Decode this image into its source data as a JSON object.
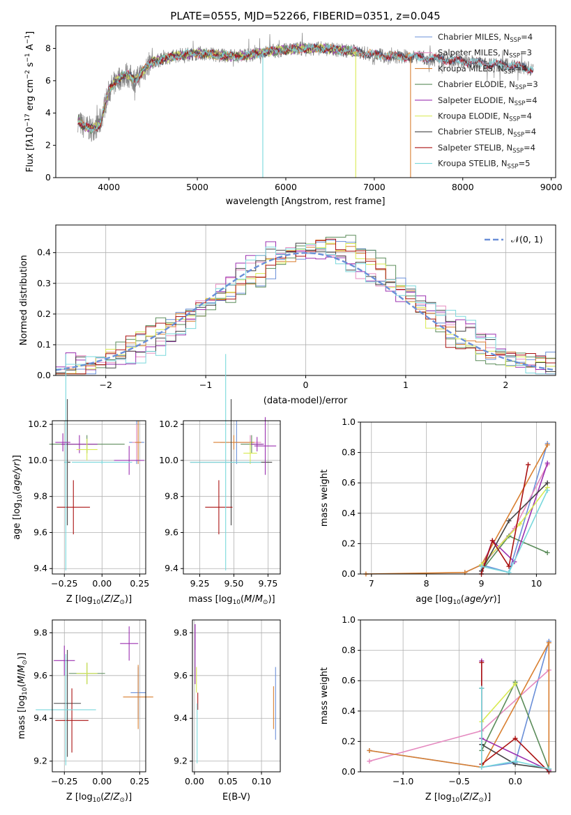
{
  "chart_data": [
    {
      "type": "line",
      "id": "spectrum",
      "title": "PLATE=0555, MJD=52266, FIBERID=0351, z=0.045",
      "xlabel": "wavelength [Angstrom, rest frame]",
      "ylabel": "Flux [f_λ 10^-17 erg cm^-2 s^-1 A^-1]",
      "xlim": [
        3400,
        9050
      ],
      "ylim": [
        0,
        9.4
      ],
      "xticks": [
        4000,
        5000,
        6000,
        7000,
        8000,
        9000
      ],
      "yticks": [
        0,
        2,
        4,
        6,
        8
      ],
      "grid": false,
      "legend_position": "top-right",
      "legend": [
        "Chabrier MILES, N_SSP=4",
        "Salpeter MILES, N_SSP=3",
        "Kroupa MILES, N_SSP=4",
        "Chabrier ELODIE, N_SSP=3",
        "Salpeter ELODIE, N_SSP=4",
        "Kroupa ELODIE, N_SSP=4",
        "Chabrier STELIB, N_SSP=4",
        "Salpeter STELIB, N_SSP=4",
        "Kroupa STELIB, N_SSP=5"
      ],
      "continuum": {
        "x": [
          3650,
          3700,
          3800,
          3900,
          3950,
          4000,
          4100,
          4200,
          4300,
          4400,
          4500,
          4600,
          4800,
          5000,
          5200,
          5400,
          5600,
          5800,
          6000,
          6200,
          6400,
          6600,
          6800,
          7000,
          7200,
          7400,
          7600,
          7800,
          8000,
          8200,
          8400,
          8600,
          8800
        ],
        "y": [
          3.6,
          3.2,
          3.0,
          3.3,
          4.4,
          5.4,
          6.1,
          6.4,
          6.0,
          6.7,
          7.2,
          7.3,
          7.6,
          7.7,
          7.6,
          7.5,
          7.6,
          7.8,
          7.9,
          8.0,
          8.0,
          7.9,
          7.8,
          7.6,
          7.5,
          7.5,
          7.4,
          7.3,
          7.2,
          7.1,
          7.0,
          6.9,
          6.7
        ]
      },
      "model_xmax": [
        8800,
        8800,
        7410,
        6800,
        6800,
        6800,
        8800,
        8800,
        8800
      ],
      "drops": [
        {
          "x": 5740,
          "series": "Kroupa STELIB"
        },
        {
          "x": 6790,
          "series": "Kroupa ELODIE"
        },
        {
          "x": 7410,
          "series": "Kroupa MILES"
        }
      ]
    },
    {
      "type": "histogram",
      "id": "residuals",
      "xlabel": "(data-model)/error",
      "ylabel": "Normed distribution",
      "xlim": [
        -2.5,
        2.5
      ],
      "ylim": [
        0,
        0.49
      ],
      "xticks": [
        -2,
        -1,
        0,
        1,
        2
      ],
      "xtick_labels": [
        "−2",
        "−1",
        "0",
        "1",
        "2"
      ],
      "yticks": [
        0.0,
        0.1,
        0.2,
        0.3,
        0.4
      ],
      "bin_width": 0.1,
      "grid": true,
      "legend_position": "top-right",
      "legend": [
        "𝒩(0, 1)"
      ],
      "normal_curve": {
        "mean": 0,
        "sigma": 1
      }
    },
    {
      "type": "scatter",
      "id": "age-vs-Z",
      "xlabel": "Z [log10(Z/Z⊙)]",
      "ylabel": "age [log10(age/yr)]",
      "xlim": [
        -0.33,
        0.29
      ],
      "ylim": [
        9.37,
        10.22
      ],
      "xticks": [
        -0.25,
        0.0,
        0.25
      ],
      "xtick_labels": [
        "−0.25",
        "0.00",
        "0.25"
      ],
      "yticks": [
        9.4,
        9.6,
        9.8,
        10.0,
        10.2
      ],
      "grid": true,
      "points": [
        {
          "x": 0.23,
          "y": 10.1,
          "xerr": 0.05,
          "yerr": 0.12,
          "series": 0
        },
        {
          "x": 0.23,
          "y": 10.1,
          "xerr": 0.03,
          "yerr": 0.1,
          "series": 1
        },
        {
          "x": 0.24,
          "y": 10.1,
          "xerr": 0.02,
          "yerr": 0.12,
          "series": 2
        },
        {
          "x": -0.1,
          "y": 10.09,
          "xerr": 0.25,
          "yerr": 0.05,
          "series": 3
        },
        {
          "x": -0.15,
          "y": 10.09,
          "xerr": 0.12,
          "yerr": 0.05,
          "series": 4
        },
        {
          "x": -0.1,
          "y": 10.06,
          "xerr": 0.07,
          "yerr": 0.06,
          "series": 5
        },
        {
          "x": -0.23,
          "y": 9.99,
          "xerr": 0.02,
          "yerr": 0.35,
          "series": 6
        },
        {
          "x": -0.19,
          "y": 9.74,
          "xerr": 0.11,
          "yerr": 0.15,
          "series": 7
        },
        {
          "x": -0.24,
          "y": 9.99,
          "xerr": 0.01,
          "yerr": 0.6,
          "series": 8
        },
        {
          "x": -0.26,
          "y": 10.1,
          "xerr": 0.05,
          "yerr": 0.05,
          "series": 4
        },
        {
          "x": 0.18,
          "y": 10.0,
          "xerr": 0.1,
          "yerr": 0.08,
          "series": 4
        },
        {
          "x": 0.0,
          "y": 9.99,
          "xerr": 0.2,
          "yerr": 0.01,
          "series": 8
        }
      ]
    },
    {
      "type": "scatter",
      "id": "age-vs-mass",
      "xlabel": "mass [log10(M/M⊙)]",
      "ylabel": "",
      "xlim": [
        9.13,
        9.84
      ],
      "ylim": [
        9.37,
        10.22
      ],
      "xticks": [
        9.25,
        9.5,
        9.75
      ],
      "xtick_labels": [
        "9.25",
        "9.50",
        "9.75"
      ],
      "yticks": [
        9.4,
        9.6,
        9.8,
        10.0,
        10.2
      ],
      "grid": true,
      "points": [
        {
          "x": 9.52,
          "y": 10.1,
          "xerr": 0.12,
          "yerr": 0.12,
          "series": 0
        },
        {
          "x": 9.62,
          "y": 10.1,
          "xerr": 0.08,
          "yerr": 0.04,
          "series": 1
        },
        {
          "x": 9.5,
          "y": 10.1,
          "xerr": 0.15,
          "yerr": 0.04,
          "series": 2
        },
        {
          "x": 9.63,
          "y": 10.09,
          "xerr": 0.08,
          "yerr": 0.05,
          "series": 3
        },
        {
          "x": 9.67,
          "y": 10.09,
          "xerr": 0.05,
          "yerr": 0.04,
          "series": 4
        },
        {
          "x": 9.62,
          "y": 10.04,
          "xerr": 0.05,
          "yerr": 0.06,
          "series": 5
        },
        {
          "x": 9.48,
          "y": 9.99,
          "xerr": 0.3,
          "yerr": 0.35,
          "series": 6
        },
        {
          "x": 9.39,
          "y": 9.74,
          "xerr": 0.1,
          "yerr": 0.15,
          "series": 7
        },
        {
          "x": 9.44,
          "y": 9.99,
          "xerr": 0.26,
          "yerr": 0.6,
          "series": 8
        },
        {
          "x": 9.73,
          "y": 10.08,
          "xerr": 0.08,
          "yerr": 0.16,
          "series": 4
        }
      ]
    },
    {
      "type": "line",
      "id": "weight-vs-age",
      "xlabel": "age [log10(age/yr)]",
      "ylabel": "mass weight",
      "xlim": [
        6.8,
        10.35
      ],
      "ylim": [
        0,
        1.0
      ],
      "xticks": [
        7,
        8,
        9,
        10
      ],
      "yticks": [
        0.0,
        0.2,
        0.4,
        0.6,
        0.8,
        1.0
      ],
      "grid": true,
      "series": [
        {
          "x": [
            8.7,
            9.0,
            9.5,
            10.2
          ],
          "y": [
            0.01,
            0.06,
            0.01,
            0.86
          ],
          "color": 0
        },
        {
          "x": [
            9.0,
            9.6,
            10.2
          ],
          "y": [
            0.05,
            0.3,
            0.72
          ],
          "color": 1
        },
        {
          "x": [
            6.9,
            8.7,
            9.0,
            10.2
          ],
          "y": [
            0.0,
            0.01,
            0.06,
            0.85
          ],
          "color": 2
        },
        {
          "x": [
            9.0,
            9.5,
            10.2
          ],
          "y": [
            0.02,
            0.25,
            0.14
          ],
          "color": 3
        },
        {
          "x": [
            9.0,
            9.2,
            9.6,
            10.2
          ],
          "y": [
            0.02,
            0.22,
            0.08,
            0.73
          ],
          "color": 4
        },
        {
          "x": [
            9.0,
            9.7,
            10.2
          ],
          "y": [
            0.06,
            0.33,
            0.57
          ],
          "color": 5
        },
        {
          "x": [
            9.0,
            9.5,
            10.2
          ],
          "y": [
            0.02,
            0.35,
            0.6
          ],
          "color": 6
        },
        {
          "x": [
            9.0,
            9.2,
            9.5,
            9.85
          ],
          "y": [
            0.0,
            0.22,
            0.05,
            0.72
          ],
          "color": 7
        },
        {
          "x": [
            9.0,
            9.5,
            10.2
          ],
          "y": [
            0.05,
            0.01,
            0.55
          ],
          "color": 8
        }
      ]
    },
    {
      "type": "scatter",
      "id": "mass-vs-Z",
      "xlabel": "Z [log10(Z/Z⊙)]",
      "ylabel": "mass [log10(M/M⊙)]",
      "xlim": [
        -0.33,
        0.29
      ],
      "ylim": [
        9.15,
        9.86
      ],
      "xticks": [
        -0.25,
        0.0,
        0.25
      ],
      "xtick_labels": [
        "−0.25",
        "0.00",
        "0.25"
      ],
      "yticks": [
        9.2,
        9.4,
        9.6,
        9.8
      ],
      "grid": true,
      "points": [
        {
          "x": 0.24,
          "y": 9.52,
          "xerr": 0.05,
          "yerr": 0.12,
          "series": 0
        },
        {
          "x": 0.24,
          "y": 9.5,
          "xerr": 0.1,
          "yerr": 0.15,
          "series": 2
        },
        {
          "x": -0.1,
          "y": 9.61,
          "xerr": 0.12,
          "yerr": 0.05,
          "series": 3
        },
        {
          "x": -0.25,
          "y": 9.67,
          "xerr": 0.07,
          "yerr": 0.07,
          "series": 4
        },
        {
          "x": -0.1,
          "y": 9.61,
          "xerr": 0.07,
          "yerr": 0.05,
          "series": 5
        },
        {
          "x": -0.23,
          "y": 9.47,
          "xerr": 0.09,
          "yerr": 0.25,
          "series": 6
        },
        {
          "x": -0.2,
          "y": 9.39,
          "xerr": 0.11,
          "yerr": 0.15,
          "series": 7
        },
        {
          "x": -0.24,
          "y": 9.44,
          "xerr": 0.2,
          "yerr": 0.26,
          "series": 8
        },
        {
          "x": 0.18,
          "y": 9.75,
          "xerr": 0.06,
          "yerr": 0.08,
          "series": 4
        }
      ]
    },
    {
      "type": "scatter",
      "id": "mass-vs-ebv",
      "xlabel": "E(B-V)",
      "ylabel": "",
      "xlim": [
        -0.003,
        0.128
      ],
      "ylim": [
        9.15,
        9.86
      ],
      "xticks": [
        0.0,
        0.05,
        0.1
      ],
      "xtick_labels": [
        "0.00",
        "0.05",
        "0.10"
      ],
      "yticks": [
        9.2,
        9.4,
        9.6,
        9.8
      ],
      "grid": true,
      "points": [
        {
          "x": 0.121,
          "y": 9.47,
          "xerr": 0.0,
          "yerr": 0.17,
          "series": 0
        },
        {
          "x": 0.118,
          "y": 9.45,
          "xerr": 0.0,
          "yerr": 0.1,
          "series": 2
        },
        {
          "x": 0.001,
          "y": 9.7,
          "xerr": 0.0,
          "yerr": 0.14,
          "series": 4
        },
        {
          "x": 0.003,
          "y": 9.58,
          "xerr": 0.0,
          "yerr": 0.06,
          "series": 5
        },
        {
          "x": 0.005,
          "y": 9.48,
          "xerr": 0.0,
          "yerr": 0.04,
          "series": 7
        },
        {
          "x": 0.004,
          "y": 9.33,
          "xerr": 0.0,
          "yerr": 0.14,
          "series": 8
        },
        {
          "x": 0.001,
          "y": 9.78,
          "xerr": 0.0,
          "yerr": 0.06,
          "series": 4
        }
      ]
    },
    {
      "type": "line",
      "id": "weight-vs-Z",
      "xlabel": "Z [log10(Z/Z⊙)]",
      "ylabel": "mass weight",
      "xlim": [
        -1.38,
        0.36
      ],
      "ylim": [
        0,
        1.0
      ],
      "xticks": [
        -1.0,
        -0.5,
        0.0
      ],
      "xtick_labels": [
        "−1.0",
        "−0.5",
        "0.0"
      ],
      "yticks": [
        0.0,
        0.2,
        0.4,
        0.6,
        0.8,
        1.0
      ],
      "grid": true,
      "series": [
        {
          "x": [
            -1.3,
            -0.3,
            0.0,
            0.3
          ],
          "y": [
            0.14,
            0.03,
            0.06,
            0.86
          ],
          "color": 0
        },
        {
          "x": [
            -1.3,
            -0.3,
            0.3
          ],
          "y": [
            0.07,
            0.27,
            0.67
          ],
          "color": 1
        },
        {
          "x": [
            -1.3,
            -0.3,
            0.3,
            0.3
          ],
          "y": [
            0.14,
            0.03,
            0.85,
            0.01
          ],
          "color": 2
        },
        {
          "x": [
            -0.3,
            0.0,
            0.3
          ],
          "y": [
            0.14,
            0.59,
            0.02
          ],
          "color": 3
        },
        {
          "x": [
            -0.3,
            -0.3,
            0.3
          ],
          "y": [
            0.73,
            0.22,
            0.01
          ],
          "color": 4
        },
        {
          "x": [
            -0.3,
            0.0
          ],
          "y": [
            0.33,
            0.58
          ],
          "color": 5
        },
        {
          "x": [
            -0.3,
            -0.3,
            0.0,
            0.3
          ],
          "y": [
            0.55,
            0.18,
            0.05,
            0.02
          ],
          "color": 6
        },
        {
          "x": [
            -0.3,
            -0.3,
            0.0,
            0.3
          ],
          "y": [
            0.72,
            0.05,
            0.22,
            0.0
          ],
          "color": 7
        },
        {
          "x": [
            -0.3,
            -0.3,
            0.0,
            0.3
          ],
          "y": [
            0.55,
            0.03,
            0.07,
            0.02
          ],
          "color": 8
        }
      ]
    }
  ],
  "series_colors": [
    "#6a8fd8",
    "#e58ac0",
    "#d97f30",
    "#5b8c5a",
    "#9b30b0",
    "#d8ea50",
    "#444444",
    "#aa1111",
    "#7ad8dc"
  ],
  "observed_color": "#808080",
  "normal_color": "#6a8fd8"
}
